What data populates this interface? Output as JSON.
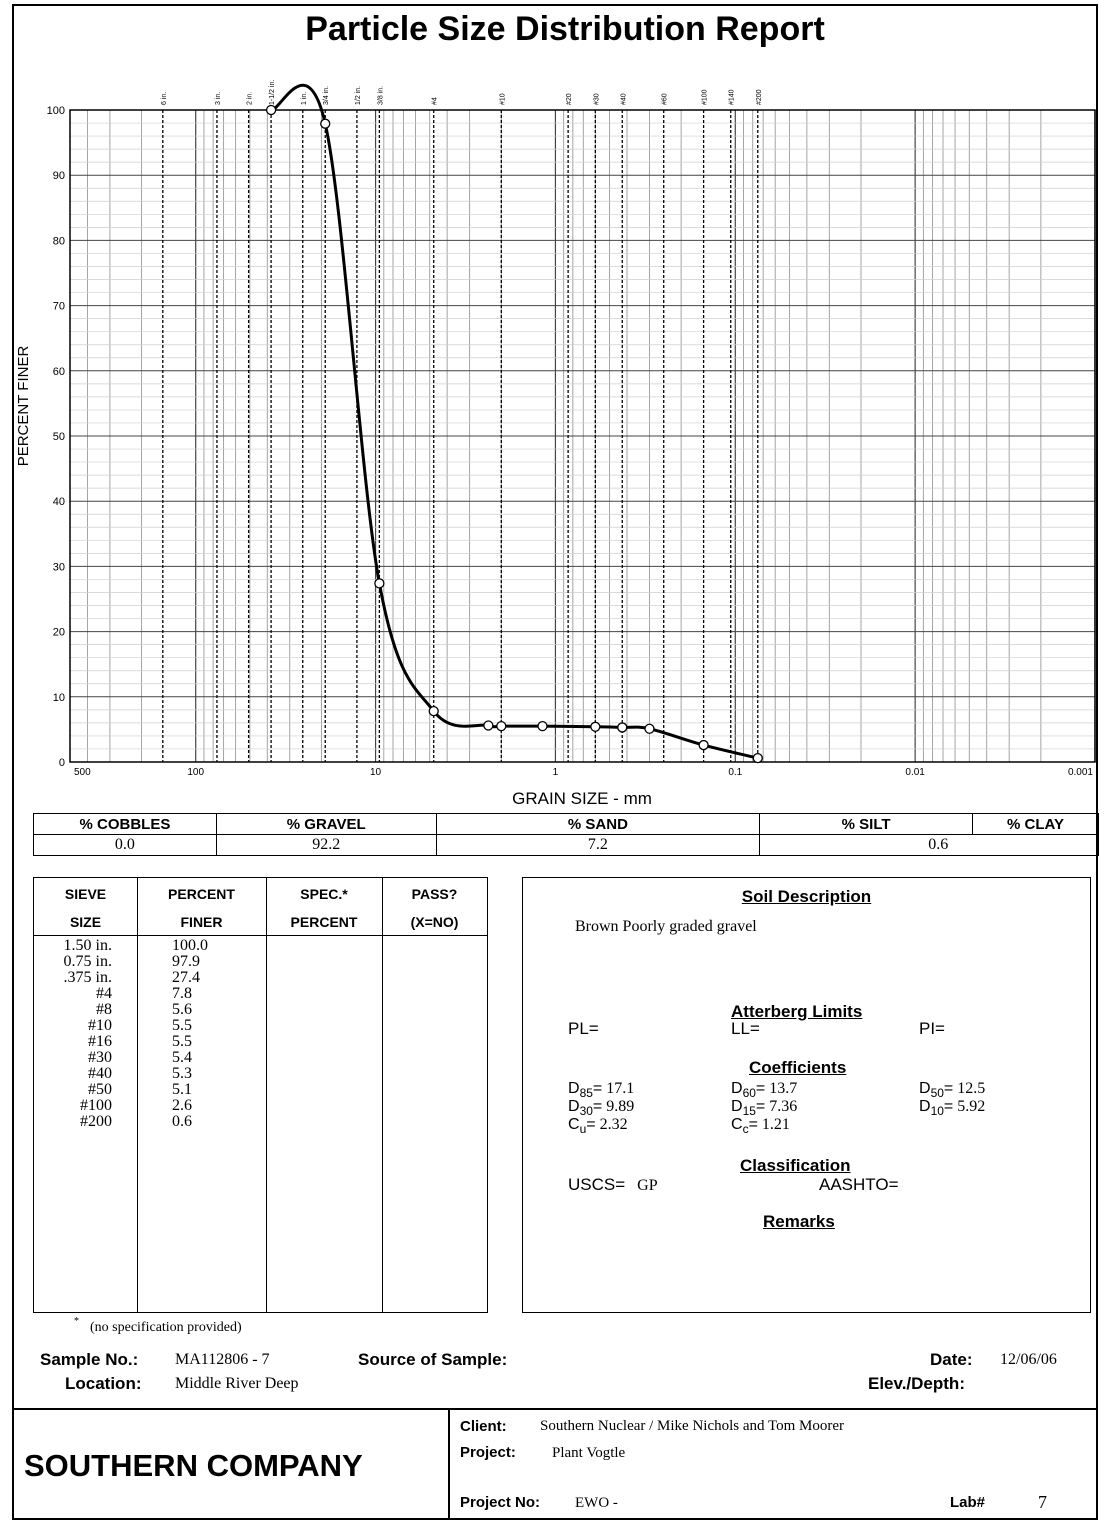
{
  "title": "Particle Size Distribution Report",
  "chart_data": {
    "type": "line",
    "xscale": "log",
    "xdirection": "reversed",
    "xlim": [
      500,
      0.001
    ],
    "ylim": [
      0,
      100
    ],
    "xlabel": "GRAIN SIZE - mm",
    "ylabel": "PERCENT FINER",
    "x_ticks": [
      "500",
      "100",
      "10",
      "1",
      "0.1",
      "0.01",
      "0.001"
    ],
    "x_tick_values": [
      500,
      100,
      10,
      1,
      0.1,
      0.01,
      0.001
    ],
    "y_ticks": [
      "0",
      "10",
      "20",
      "30",
      "40",
      "50",
      "60",
      "70",
      "80",
      "90",
      "100"
    ],
    "sieve_labels": [
      "6 in.",
      "3 in.",
      "2 in.",
      "1-1/2 in.",
      "1 in.",
      "3/4 in.",
      "1/2 in.",
      "3/8 in.",
      "#4",
      "#10",
      "#20",
      "#30",
      "#40",
      "#60",
      "#100",
      "#140",
      "#200"
    ],
    "sieve_mm": [
      152.4,
      76.2,
      50.8,
      38.1,
      25.4,
      19.05,
      12.7,
      9.525,
      4.75,
      2.0,
      0.85,
      0.6,
      0.425,
      0.25,
      0.15,
      0.106,
      0.075
    ],
    "points": [
      {
        "x": 38.1,
        "y": 100.0
      },
      {
        "x": 19.05,
        "y": 97.9
      },
      {
        "x": 9.525,
        "y": 27.4
      },
      {
        "x": 4.75,
        "y": 7.8
      },
      {
        "x": 2.36,
        "y": 5.6
      },
      {
        "x": 2.0,
        "y": 5.5
      },
      {
        "x": 1.18,
        "y": 5.5
      },
      {
        "x": 0.6,
        "y": 5.4
      },
      {
        "x": 0.425,
        "y": 5.3
      },
      {
        "x": 0.3,
        "y": 5.1
      },
      {
        "x": 0.15,
        "y": 2.6
      },
      {
        "x": 0.075,
        "y": 0.6
      }
    ],
    "grid": true
  },
  "fractions": {
    "headers": [
      "% COBBLES",
      "% GRAVEL",
      "% SAND",
      "% SILT",
      "% CLAY"
    ],
    "values": [
      "0.0",
      "92.2",
      "7.2",
      "0.6"
    ]
  },
  "sieve_table": {
    "header1": [
      "SIEVE",
      "PERCENT",
      "SPEC.*",
      "PASS?"
    ],
    "header2": [
      "SIZE",
      "FINER",
      "PERCENT",
      "(X=NO)"
    ],
    "sizes": [
      "1.50 in.",
      "0.75 in.",
      ".375 in.",
      "#4",
      "#8",
      "#10",
      "#16",
      "#30",
      "#40",
      "#50",
      "#100",
      "#200"
    ],
    "finer": [
      "100.0",
      "97.9",
      "27.4",
      "7.8",
      "5.6",
      "5.5",
      "5.5",
      "5.4",
      "5.3",
      "5.1",
      "2.6",
      "0.6"
    ]
  },
  "footnote": "(no specification provided)",
  "soil": {
    "heading": "Soil Description",
    "description": "Brown Poorly graded gravel",
    "atterberg_heading": "Atterberg Limits",
    "pl": "PL=",
    "ll": "LL=",
    "pi": "PI=",
    "coeff_heading": "Coefficients",
    "d85": "17.1",
    "d60": "13.7",
    "d50": "12.5",
    "d30": "9.89",
    "d15": "7.36",
    "d10": "5.92",
    "cu": "2.32",
    "cc": "1.21",
    "class_heading": "Classification",
    "uscs_label": "USCS=",
    "uscs": "GP",
    "aashto_label": "AASHTO=",
    "remarks_heading": "Remarks"
  },
  "sample": {
    "no_label": "Sample No.:",
    "no": "MA112806 - 7",
    "source_label": "Source of Sample:",
    "date_label": "Date:",
    "date": "12/06/06",
    "location_label": "Location:",
    "location": "Middle River Deep",
    "elev_label": "Elev./Depth:"
  },
  "footer": {
    "company": "SOUTHERN COMPANY",
    "client_label": "Client:",
    "client": "Southern Nuclear / Mike Nichols and Tom Moorer",
    "project_label": "Project:",
    "project": "Plant Vogtle",
    "project_no_label": "Project No:",
    "project_no": "EWO -",
    "lab_label": "Lab#",
    "lab": "7"
  }
}
